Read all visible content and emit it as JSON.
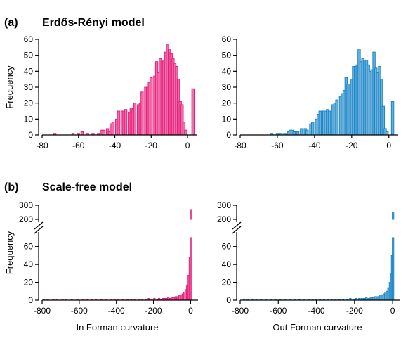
{
  "sections": [
    {
      "label": "(a)",
      "title": "Erdős-Rényi model"
    },
    {
      "label": "(b)",
      "title": "Scale-free model"
    }
  ],
  "chart_data": [
    {
      "type": "bar",
      "panel": "a-left",
      "color": "#e6207a",
      "ylabel": "Frequency",
      "xlabel": "",
      "xlim": [
        -80,
        5
      ],
      "ylim": [
        0,
        60
      ],
      "xticks": [
        -80,
        -60,
        -40,
        -20,
        0
      ],
      "yticks": [
        0,
        10,
        20,
        30,
        40,
        50,
        60
      ],
      "bin_width": 1.3,
      "bins": [
        [
          -73,
          1
        ],
        [
          -63,
          1
        ],
        [
          -60,
          1
        ],
        [
          -58,
          2
        ],
        [
          -55,
          1
        ],
        [
          -52,
          1
        ],
        [
          -49,
          1
        ],
        [
          -47,
          3
        ],
        [
          -46,
          3
        ],
        [
          -44,
          4
        ],
        [
          -43,
          2
        ],
        [
          -42,
          7
        ],
        [
          -41,
          8
        ],
        [
          -39,
          10
        ],
        [
          -38,
          15
        ],
        [
          -36,
          15
        ],
        [
          -35,
          15
        ],
        [
          -34,
          16
        ],
        [
          -32,
          14
        ],
        [
          -31,
          17
        ],
        [
          -30,
          16
        ],
        [
          -29,
          20
        ],
        [
          -27,
          19
        ],
        [
          -26,
          20
        ],
        [
          -25,
          27
        ],
        [
          -23,
          30
        ],
        [
          -22,
          30
        ],
        [
          -21,
          33
        ],
        [
          -20,
          36
        ],
        [
          -18,
          37
        ],
        [
          -17,
          46
        ],
        [
          -16,
          39
        ],
        [
          -15,
          48
        ],
        [
          -14,
          46
        ],
        [
          -13,
          47
        ],
        [
          -12,
          52
        ],
        [
          -11,
          57
        ],
        [
          -10,
          54
        ],
        [
          -9,
          51
        ],
        [
          -8,
          48
        ],
        [
          -7,
          45
        ],
        [
          -6,
          43
        ],
        [
          -5,
          35
        ],
        [
          -4,
          21
        ],
        [
          -3,
          19
        ],
        [
          -2,
          8
        ],
        [
          -1,
          3
        ],
        [
          3,
          29
        ]
      ]
    },
    {
      "type": "bar",
      "panel": "a-right",
      "color": "#1b86c8",
      "ylabel": "",
      "xlabel": "",
      "xlim": [
        -80,
        5
      ],
      "ylim": [
        0,
        60
      ],
      "xticks": [
        -80,
        -60,
        -40,
        -20,
        0
      ],
      "yticks": [
        0,
        10,
        20,
        30,
        40,
        50,
        60
      ],
      "bin_width": 1.3,
      "bins": [
        [
          -63,
          1
        ],
        [
          -60,
          1
        ],
        [
          -58,
          1
        ],
        [
          -56,
          1
        ],
        [
          -54,
          2
        ],
        [
          -53,
          3
        ],
        [
          -52,
          3
        ],
        [
          -51,
          2
        ],
        [
          -49,
          2
        ],
        [
          -47,
          4
        ],
        [
          -45,
          4
        ],
        [
          -44,
          3
        ],
        [
          -42,
          7
        ],
        [
          -41,
          8
        ],
        [
          -39,
          10
        ],
        [
          -38,
          13
        ],
        [
          -37,
          15
        ],
        [
          -35,
          15
        ],
        [
          -34,
          15
        ],
        [
          -33,
          16
        ],
        [
          -32,
          15
        ],
        [
          -30,
          19
        ],
        [
          -29,
          20
        ],
        [
          -28,
          22
        ],
        [
          -26,
          24
        ],
        [
          -25,
          26
        ],
        [
          -24,
          28
        ],
        [
          -23,
          36
        ],
        [
          -22,
          32
        ],
        [
          -20,
          35
        ],
        [
          -19,
          43
        ],
        [
          -18,
          43
        ],
        [
          -17,
          44
        ],
        [
          -16,
          54
        ],
        [
          -15,
          46
        ],
        [
          -14,
          48
        ],
        [
          -13,
          47
        ],
        [
          -12,
          47
        ],
        [
          -11,
          44
        ],
        [
          -10,
          40
        ],
        [
          -9,
          41
        ],
        [
          -8,
          52
        ],
        [
          -7,
          42
        ],
        [
          -6,
          39
        ],
        [
          -5,
          43
        ],
        [
          -4,
          35
        ],
        [
          -3,
          18
        ],
        [
          -2,
          4
        ],
        [
          -1,
          2
        ],
        [
          2,
          21
        ]
      ]
    },
    {
      "type": "bar",
      "panel": "b-left",
      "color": "#e6207a",
      "ylabel": "Frequency",
      "xlabel": "In Forman curvature",
      "xlim": [
        -800,
        40
      ],
      "ylim": [
        0,
        300
      ],
      "broken_axis": [
        70,
        200
      ],
      "xticks": [
        -800,
        -600,
        -400,
        -200,
        0
      ],
      "yticks_lower": [
        0,
        20,
        40,
        60
      ],
      "yticks_upper": [
        200,
        300
      ],
      "bin_width": 8,
      "bins": [
        [
          -790,
          1
        ],
        [
          -770,
          1
        ],
        [
          -740,
          1
        ],
        [
          -720,
          1
        ],
        [
          -690,
          1
        ],
        [
          -670,
          1
        ],
        [
          -640,
          1
        ],
        [
          -610,
          1
        ],
        [
          -580,
          1
        ],
        [
          -560,
          1
        ],
        [
          -530,
          1
        ],
        [
          -510,
          1
        ],
        [
          -480,
          1
        ],
        [
          -455,
          1
        ],
        [
          -430,
          1
        ],
        [
          -410,
          1
        ],
        [
          -390,
          1
        ],
        [
          -365,
          1
        ],
        [
          -340,
          1
        ],
        [
          -320,
          1
        ],
        [
          -300,
          1
        ],
        [
          -280,
          1
        ],
        [
          -260,
          1
        ],
        [
          -240,
          1
        ],
        [
          -225,
          2
        ],
        [
          -210,
          1
        ],
        [
          -195,
          2
        ],
        [
          -180,
          1
        ],
        [
          -170,
          2
        ],
        [
          -160,
          1
        ],
        [
          -150,
          2
        ],
        [
          -140,
          2
        ],
        [
          -130,
          2
        ],
        [
          -120,
          3
        ],
        [
          -110,
          2
        ],
        [
          -100,
          3
        ],
        [
          -90,
          3
        ],
        [
          -80,
          4
        ],
        [
          -70,
          4
        ],
        [
          -60,
          5
        ],
        [
          -50,
          6
        ],
        [
          -42,
          7
        ],
        [
          -34,
          9
        ],
        [
          -26,
          12
        ],
        [
          -18,
          17
        ],
        [
          -10,
          28
        ],
        [
          -4,
          48
        ],
        [
          2,
          270
        ]
      ]
    },
    {
      "type": "bar",
      "panel": "b-right",
      "color": "#1b86c8",
      "ylabel": "",
      "xlabel": "Out Forman curvature",
      "xlim": [
        -800,
        40
      ],
      "ylim": [
        0,
        300
      ],
      "broken_axis": [
        70,
        200
      ],
      "xticks": [
        -800,
        -600,
        -400,
        -200,
        0
      ],
      "yticks_lower": [
        0,
        20,
        40,
        60
      ],
      "yticks_upper": [
        200,
        300
      ],
      "bin_width": 8,
      "bins": [
        [
          -780,
          1
        ],
        [
          -760,
          1
        ],
        [
          -735,
          1
        ],
        [
          -715,
          1
        ],
        [
          -690,
          1
        ],
        [
          -665,
          1
        ],
        [
          -640,
          1
        ],
        [
          -615,
          1
        ],
        [
          -590,
          1
        ],
        [
          -565,
          1
        ],
        [
          -540,
          1
        ],
        [
          -515,
          1
        ],
        [
          -490,
          1
        ],
        [
          -465,
          1
        ],
        [
          -440,
          1
        ],
        [
          -420,
          1
        ],
        [
          -400,
          1
        ],
        [
          -380,
          1
        ],
        [
          -360,
          1
        ],
        [
          -340,
          1
        ],
        [
          -320,
          1
        ],
        [
          -300,
          1
        ],
        [
          -280,
          1
        ],
        [
          -260,
          1
        ],
        [
          -240,
          1
        ],
        [
          -222,
          2
        ],
        [
          -205,
          1
        ],
        [
          -190,
          2
        ],
        [
          -175,
          2
        ],
        [
          -162,
          2
        ],
        [
          -150,
          2
        ],
        [
          -138,
          3
        ],
        [
          -126,
          2
        ],
        [
          -114,
          3
        ],
        [
          -102,
          3
        ],
        [
          -90,
          4
        ],
        [
          -78,
          4
        ],
        [
          -66,
          5
        ],
        [
          -56,
          6
        ],
        [
          -46,
          7
        ],
        [
          -38,
          8
        ],
        [
          -30,
          10
        ],
        [
          -22,
          14
        ],
        [
          -14,
          20
        ],
        [
          -8,
          30
        ],
        [
          -3,
          50
        ],
        [
          2,
          252
        ]
      ]
    }
  ]
}
